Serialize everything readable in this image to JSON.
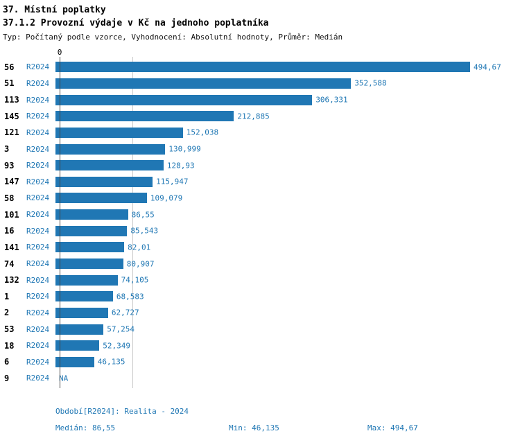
{
  "header": {
    "title1": "37. Místní poplatky",
    "title2": "37.1.2 Provozní výdaje v Kč na jednoho poplatníka",
    "subtitle": "Typ: Počítaný podle vzorce, Vyhodnocení: Absolutní hodnoty, Průměr: Medián"
  },
  "chart_data": {
    "type": "bar",
    "orientation": "horizontal",
    "series_label": "R2024",
    "axis_zero_label": "0",
    "bar_color": "#2077b4",
    "text_color": "#1f77b4",
    "median_value": 86.55,
    "max_value": 494.67,
    "xlim": [
      0,
      494.67
    ],
    "grid": false,
    "rows": [
      {
        "id": "56",
        "period": "R2024",
        "value": 494.67,
        "value_label": "494,67"
      },
      {
        "id": "51",
        "period": "R2024",
        "value": 352.588,
        "value_label": "352,588"
      },
      {
        "id": "113",
        "period": "R2024",
        "value": 306.331,
        "value_label": "306,331"
      },
      {
        "id": "145",
        "period": "R2024",
        "value": 212.885,
        "value_label": "212,885"
      },
      {
        "id": "121",
        "period": "R2024",
        "value": 152.038,
        "value_label": "152,038"
      },
      {
        "id": "3",
        "period": "R2024",
        "value": 130.999,
        "value_label": "130,999"
      },
      {
        "id": "93",
        "period": "R2024",
        "value": 128.93,
        "value_label": "128,93"
      },
      {
        "id": "147",
        "period": "R2024",
        "value": 115.947,
        "value_label": "115,947"
      },
      {
        "id": "58",
        "period": "R2024",
        "value": 109.079,
        "value_label": "109,079"
      },
      {
        "id": "101",
        "period": "R2024",
        "value": 86.55,
        "value_label": "86,55"
      },
      {
        "id": "16",
        "period": "R2024",
        "value": 85.543,
        "value_label": "85,543"
      },
      {
        "id": "141",
        "period": "R2024",
        "value": 82.01,
        "value_label": "82,01"
      },
      {
        "id": "74",
        "period": "R2024",
        "value": 80.907,
        "value_label": "80,907"
      },
      {
        "id": "132",
        "period": "R2024",
        "value": 74.105,
        "value_label": "74,105"
      },
      {
        "id": "1",
        "period": "R2024",
        "value": 68.583,
        "value_label": "68,583"
      },
      {
        "id": "2",
        "period": "R2024",
        "value": 62.727,
        "value_label": "62,727"
      },
      {
        "id": "53",
        "period": "R2024",
        "value": 57.254,
        "value_label": "57,254"
      },
      {
        "id": "18",
        "period": "R2024",
        "value": 52.349,
        "value_label": "52,349"
      },
      {
        "id": "6",
        "period": "R2024",
        "value": 46.135,
        "value_label": "46,135"
      },
      {
        "id": "9",
        "period": "R2024",
        "value": null,
        "value_label": "NA"
      }
    ]
  },
  "footer": {
    "period_line": "Období[R2024]: Realita - 2024",
    "median": "Medián: 86,55",
    "min": "Min: 46,135",
    "max": "Max: 494,67"
  }
}
